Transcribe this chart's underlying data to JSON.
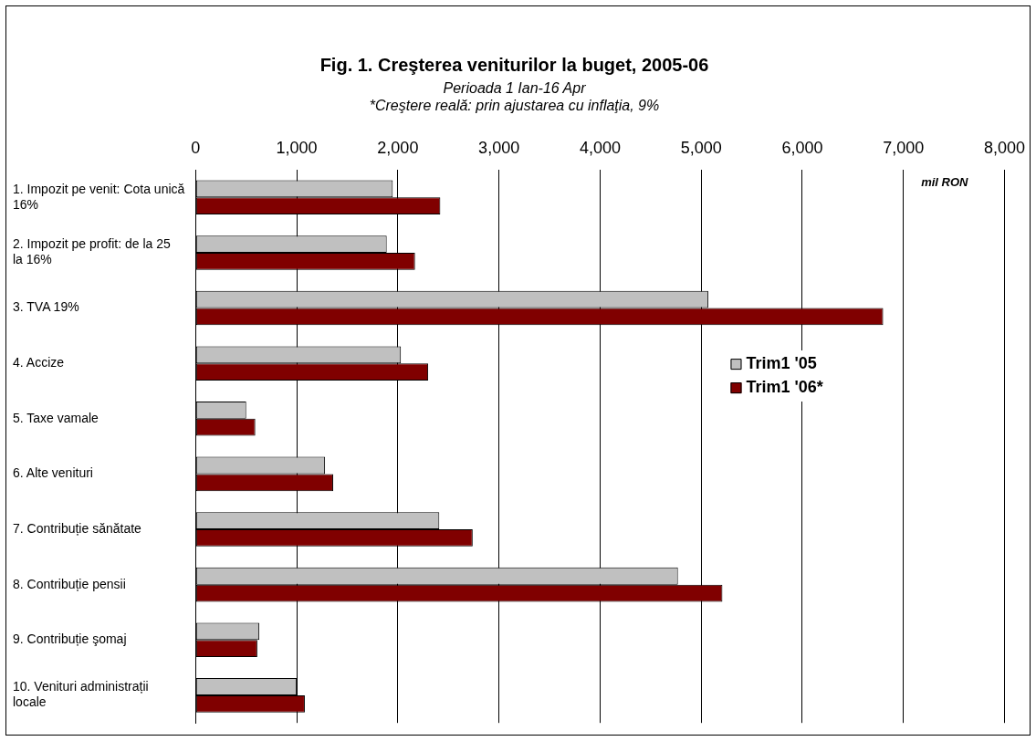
{
  "chart_data": {
    "type": "bar",
    "orientation": "horizontal",
    "title": "Fig. 1. Creşterea veniturilor la buget, 2005-06",
    "subtitle": "Perioada 1 Ian-16 Apr",
    "annotations": [
      "*Creştere reală: prin ajustarea cu inflaţia, 9%",
      "mil RON"
    ],
    "categories": [
      "1. Impozit pe venit: Cota unică 16%",
      "2. Impozit pe profit: de la 25 la 16%",
      "3. TVA 19%",
      "4. Accize ",
      "5. Taxe vamale ",
      "6. Alte venituri ",
      "7. Contribuție sănătate",
      "8. Contribuție pensii",
      "9. Contribuție şomaj",
      "10. Venituri administrații locale"
    ],
    "series": [
      {
        "name": "Trim1 '05",
        "color": "#c0c0c0",
        "values": [
          1950,
          1890,
          5070,
          2030,
          500,
          1280,
          2410,
          4770,
          630,
          1000
        ]
      },
      {
        "name": "Trim1 '06*",
        "color": "#800000",
        "values": [
          2420,
          2170,
          6800,
          2300,
          590,
          1360,
          2740,
          5210,
          610,
          1080
        ]
      }
    ],
    "xlim": [
      0,
      8000
    ],
    "xticks": [
      {
        "value": 0,
        "label": "0"
      },
      {
        "value": 1000,
        "label": "1,000"
      },
      {
        "value": 2000,
        "label": "2,000"
      },
      {
        "value": 3000,
        "label": "3,000"
      },
      {
        "value": 4000,
        "label": "4,000"
      },
      {
        "value": 5000,
        "label": "5,000"
      },
      {
        "value": 6000,
        "label": "6,000"
      },
      {
        "value": 7000,
        "label": "7,000"
      },
      {
        "value": 8000,
        "label": "8,000"
      }
    ],
    "grid": "x",
    "legend": "right"
  }
}
